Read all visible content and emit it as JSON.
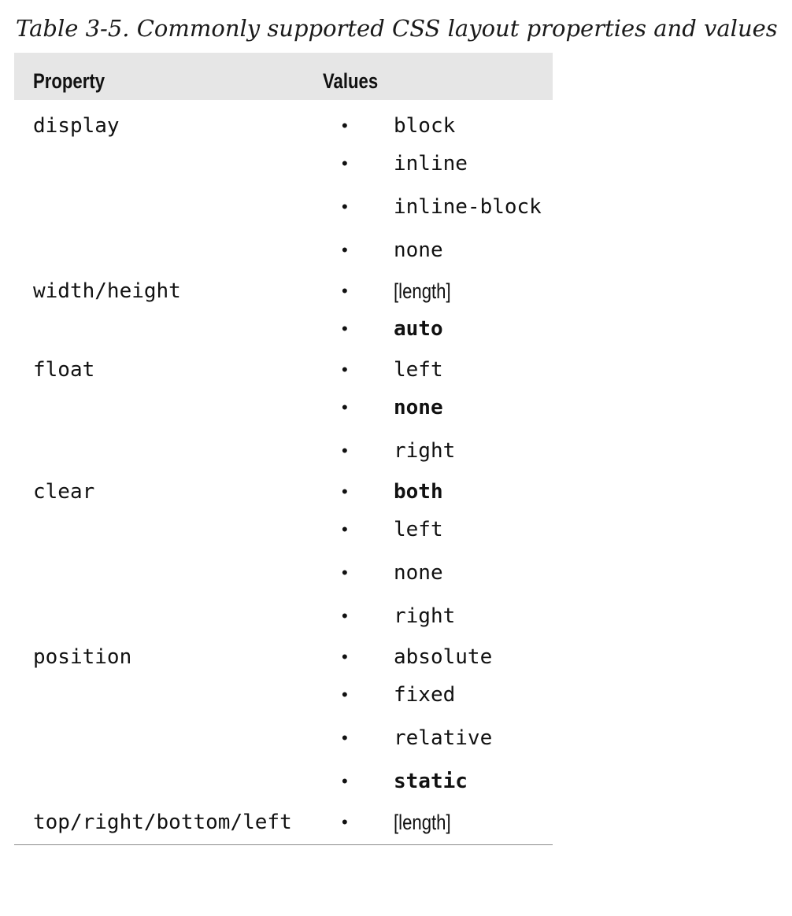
{
  "caption": "Table 3-5. Commonly supported CSS layout properties and values",
  "table": {
    "headers": {
      "property": "Property",
      "values": "Values"
    },
    "rows": [
      {
        "property": "display",
        "values": [
          {
            "text": "block",
            "style": "mono"
          },
          {
            "text": "inline",
            "style": "mono"
          },
          {
            "text": "inline-block",
            "style": "mono"
          },
          {
            "text": "none",
            "style": "mono"
          }
        ]
      },
      {
        "property": "width/height",
        "values": [
          {
            "text": "[length]",
            "style": "narrow"
          },
          {
            "text": "auto",
            "style": "bold"
          }
        ]
      },
      {
        "property": "float",
        "values": [
          {
            "text": "left",
            "style": "mono"
          },
          {
            "text": "none",
            "style": "bold"
          },
          {
            "text": "right",
            "style": "mono"
          }
        ]
      },
      {
        "property": "clear",
        "values": [
          {
            "text": "both",
            "style": "bold"
          },
          {
            "text": "left",
            "style": "mono"
          },
          {
            "text": "none",
            "style": "mono"
          },
          {
            "text": "right",
            "style": "mono"
          }
        ]
      },
      {
        "property": "position",
        "values": [
          {
            "text": "absolute",
            "style": "mono"
          },
          {
            "text": "fixed",
            "style": "mono"
          },
          {
            "text": "relative",
            "style": "mono"
          },
          {
            "text": "static",
            "style": "bold"
          }
        ]
      },
      {
        "property": "top/right/bottom/left",
        "values": [
          {
            "text": "[length]",
            "style": "narrow"
          }
        ]
      }
    ]
  },
  "bullet_glyph": "•",
  "colors": {
    "header_background": "#e6e6e6",
    "text": "#111111"
  }
}
